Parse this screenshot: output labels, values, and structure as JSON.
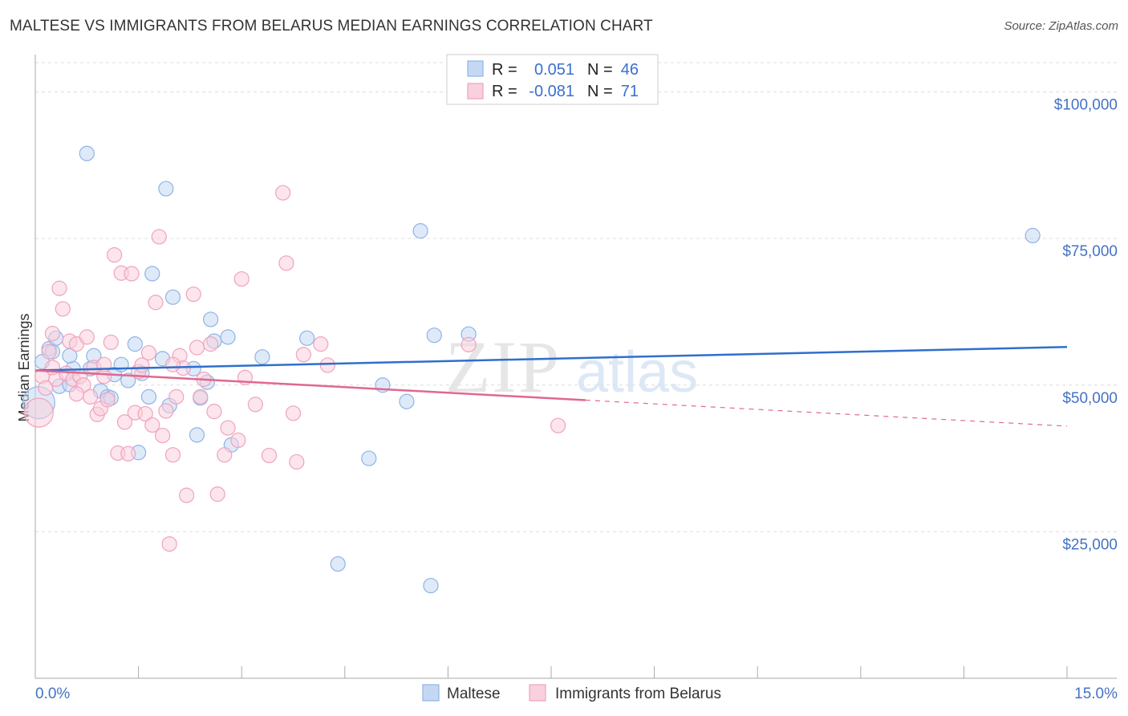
{
  "chart_data": {
    "type": "scatter",
    "title": "MALTESE VS IMMIGRANTS FROM BELARUS MEDIAN EARNINGS CORRELATION CHART",
    "source": "Source: ZipAtlas.com",
    "watermark": {
      "zip": "ZIP",
      "atlas": "atlas"
    },
    "xlabel": "",
    "ylabel": "Median Earnings",
    "xlim": [
      0,
      15
    ],
    "ylim": [
      0,
      105000
    ],
    "x_tick_labels": {
      "left": "0.0%",
      "right": "15.0%"
    },
    "y_ticks": [
      {
        "value": 100000,
        "label": "$100,000"
      },
      {
        "value": 75000,
        "label": "$75,000"
      },
      {
        "value": 50000,
        "label": "$50,000"
      },
      {
        "value": 25000,
        "label": "$25,000"
      }
    ],
    "legend": {
      "r_label": "R =",
      "n_label": "N =",
      "entries": [
        {
          "r": "0.051",
          "n": "46"
        },
        {
          "r": "-0.081",
          "n": "71"
        }
      ]
    },
    "series": [
      {
        "name": "Maltese",
        "color": "#8fb3e8",
        "fill": "#c5d8f3",
        "line_color": "#2f6fcc",
        "trend": {
          "x": [
            0,
            15
          ],
          "y": [
            52500,
            56500
          ],
          "dashed_from": null
        },
        "points": [
          [
            0.05,
            47000
          ],
          [
            0.1,
            54000
          ],
          [
            0.2,
            56200
          ],
          [
            0.25,
            55700
          ],
          [
            0.3,
            58000
          ],
          [
            0.35,
            49800
          ],
          [
            0.5,
            50100
          ],
          [
            0.55,
            52800
          ],
          [
            0.5,
            55000
          ],
          [
            0.75,
            89500
          ],
          [
            0.8,
            52800
          ],
          [
            0.85,
            55000
          ],
          [
            0.95,
            49000
          ],
          [
            1.05,
            48000
          ],
          [
            1.1,
            47800
          ],
          [
            1.15,
            51800
          ],
          [
            1.25,
            53500
          ],
          [
            1.35,
            50800
          ],
          [
            1.45,
            57000
          ],
          [
            1.5,
            38500
          ],
          [
            1.55,
            52000
          ],
          [
            1.65,
            48000
          ],
          [
            1.7,
            69000
          ],
          [
            1.85,
            54500
          ],
          [
            1.9,
            83500
          ],
          [
            1.95,
            46500
          ],
          [
            2.0,
            65000
          ],
          [
            2.3,
            52800
          ],
          [
            2.35,
            41500
          ],
          [
            2.4,
            47800
          ],
          [
            2.5,
            50500
          ],
          [
            2.55,
            61200
          ],
          [
            2.6,
            57500
          ],
          [
            2.8,
            58200
          ],
          [
            2.85,
            39800
          ],
          [
            3.3,
            54800
          ],
          [
            3.95,
            58000
          ],
          [
            4.4,
            19500
          ],
          [
            4.85,
            37500
          ],
          [
            5.05,
            50000
          ],
          [
            5.4,
            47200
          ],
          [
            5.6,
            76300
          ],
          [
            5.75,
            15800
          ],
          [
            5.8,
            58500
          ],
          [
            6.3,
            58700
          ],
          [
            14.5,
            75500
          ]
        ]
      },
      {
        "name": "Immigrants from Belarus",
        "color": "#f0a3bc",
        "fill": "#f9d0dd",
        "line_color": "#e0688f",
        "trend": {
          "x": [
            0,
            15
          ],
          "y": [
            52500,
            43000
          ],
          "dashed_from": 8.0
        },
        "points": [
          [
            0.05,
            45300
          ],
          [
            0.1,
            51500
          ],
          [
            0.2,
            55700
          ],
          [
            0.25,
            58800
          ],
          [
            0.3,
            51000
          ],
          [
            0.35,
            66500
          ],
          [
            0.4,
            63000
          ],
          [
            0.45,
            52000
          ],
          [
            0.5,
            57500
          ],
          [
            0.55,
            51000
          ],
          [
            0.6,
            57000
          ],
          [
            0.65,
            51500
          ],
          [
            0.7,
            50000
          ],
          [
            0.75,
            58200
          ],
          [
            0.8,
            48000
          ],
          [
            0.85,
            53000
          ],
          [
            0.9,
            45000
          ],
          [
            0.95,
            46000
          ],
          [
            1.0,
            51500
          ],
          [
            1.05,
            47500
          ],
          [
            1.1,
            57300
          ],
          [
            1.15,
            72200
          ],
          [
            1.2,
            38400
          ],
          [
            1.25,
            69100
          ],
          [
            1.3,
            43700
          ],
          [
            1.35,
            38300
          ],
          [
            1.4,
            69000
          ],
          [
            1.45,
            45300
          ],
          [
            1.5,
            52300
          ],
          [
            1.55,
            53400
          ],
          [
            1.6,
            45100
          ],
          [
            1.65,
            55500
          ],
          [
            1.7,
            43200
          ],
          [
            1.75,
            64100
          ],
          [
            1.8,
            75300
          ],
          [
            1.85,
            41400
          ],
          [
            1.9,
            45600
          ],
          [
            1.95,
            22900
          ],
          [
            2.0,
            38100
          ],
          [
            2.05,
            48000
          ],
          [
            2.1,
            55000
          ],
          [
            2.15,
            52900
          ],
          [
            2.2,
            31200
          ],
          [
            2.3,
            65500
          ],
          [
            2.35,
            56400
          ],
          [
            2.4,
            48000
          ],
          [
            2.45,
            51000
          ],
          [
            2.55,
            57000
          ],
          [
            2.6,
            45500
          ],
          [
            2.65,
            31400
          ],
          [
            2.75,
            38100
          ],
          [
            2.8,
            42700
          ],
          [
            2.95,
            40600
          ],
          [
            3.0,
            68100
          ],
          [
            3.05,
            51300
          ],
          [
            3.2,
            46700
          ],
          [
            3.4,
            38000
          ],
          [
            3.6,
            82800
          ],
          [
            3.65,
            70800
          ],
          [
            3.75,
            45200
          ],
          [
            3.8,
            36900
          ],
          [
            3.9,
            55200
          ],
          [
            4.15,
            57000
          ],
          [
            4.25,
            53400
          ],
          [
            6.3,
            56900
          ],
          [
            7.6,
            43100
          ],
          [
            0.25,
            53000
          ],
          [
            0.6,
            48500
          ],
          [
            1.0,
            53500
          ],
          [
            2.0,
            53500
          ],
          [
            0.15,
            49500
          ]
        ]
      }
    ],
    "bottom_legend": [
      "Maltese",
      "Immigrants from Belarus"
    ]
  }
}
